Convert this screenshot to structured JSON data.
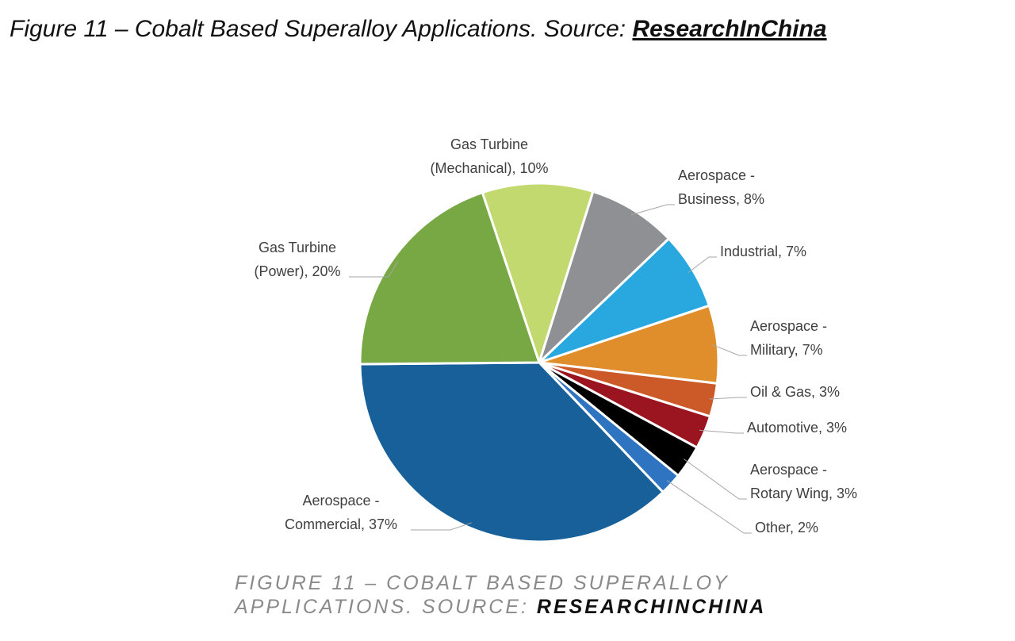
{
  "title": {
    "text": "Figure 11 – Cobalt Based Superalloy Applications. Source: ",
    "link": "ResearchInChina"
  },
  "chart_data": {
    "type": "pie",
    "values": [
      10,
      8,
      7,
      7,
      3,
      3,
      3,
      2,
      37,
      20
    ],
    "data_labels": [
      [
        "Gas Turbine",
        "(Mechanical), 10%"
      ],
      [
        "Aerospace -",
        "Business, 8%"
      ],
      [
        "Industrial, 7%"
      ],
      [
        "Aerospace -",
        "Military, 7%"
      ],
      [
        "Oil & Gas, 3%"
      ],
      [
        "Automotive, 3%"
      ],
      [
        "Aerospace -",
        "Rotary Wing, 3%"
      ],
      [
        "Other, 2%"
      ],
      [
        "Aerospace -",
        "Commercial, 37%"
      ],
      [
        "Gas Turbine",
        "(Power), 20%"
      ]
    ],
    "colors": [
      "#c1d96f",
      "#8f9094",
      "#29a8e0",
      "#e08e2c",
      "#cc5a28",
      "#9b1520",
      "#000000",
      "#2e74c0",
      "#17609a",
      "#77a843"
    ]
  },
  "caption": {
    "text": "Figure 11 – Cobalt Based Superalloy Applications. Source: ",
    "link": "ResearchInChina"
  }
}
